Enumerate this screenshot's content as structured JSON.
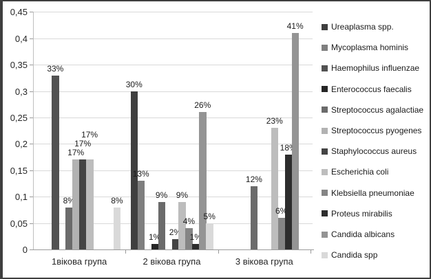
{
  "window": {
    "background": "#ffffff",
    "frame_border_color": "#3f3f3f",
    "gridline_color": "#d9d9d9",
    "axis_color": "#9a9a9a"
  },
  "chart_data": {
    "type": "bar",
    "title": "",
    "categories": [
      "1вікова група",
      "2 вікова група",
      "3 вікова група"
    ],
    "y_axis": {
      "min": 0,
      "max": 0.45,
      "step": 0.05,
      "tick_labels": [
        "0",
        "0,05",
        "0,1",
        "0,15",
        "0,2",
        "0,25",
        "0,3",
        "0,35",
        "0,4",
        "0,45"
      ],
      "decimal_separator": ","
    },
    "grid": true,
    "data_labels": true,
    "legend_position": "right",
    "series": [
      {
        "name": "Ureaplasma spp.",
        "color": "#3f3f3f",
        "values": [
          0,
          0.3,
          0
        ],
        "labels": [
          "",
          "30%",
          ""
        ]
      },
      {
        "name": "Mycoplasma hominis",
        "color": "#7f7f7f",
        "values": [
          0,
          0.13,
          0
        ],
        "labels": [
          "",
          "13%",
          ""
        ]
      },
      {
        "name": "Haemophilus influenzae",
        "color": "#525252",
        "values": [
          0.33,
          0,
          0
        ],
        "labels": [
          "33%",
          "",
          ""
        ]
      },
      {
        "name": "Enterococcus faecalis",
        "color": "#262626",
        "values": [
          0,
          0.01,
          0
        ],
        "labels": [
          "",
          "1%",
          ""
        ]
      },
      {
        "name": "Streptococcus agalactiae",
        "color": "#6b6b6b",
        "values": [
          0.08,
          0.09,
          0.12
        ],
        "labels": [
          "8%",
          "9%",
          "12%"
        ]
      },
      {
        "name": "Streptococcus pyogenes",
        "color": "#b2b2b2",
        "values": [
          0.17,
          0,
          0
        ],
        "labels": [
          "17%",
          "",
          ""
        ]
      },
      {
        "name": "Staphylococcus aureus",
        "color": "#444444",
        "values": [
          0.17,
          0.02,
          0
        ],
        "labels": [
          "17%",
          "2%",
          ""
        ]
      },
      {
        "name": "Escherichia coli",
        "color": "#bdbdbd",
        "values": [
          0.17,
          0.09,
          0.23
        ],
        "labels": [
          "17%",
          "9%",
          "23%"
        ]
      },
      {
        "name": "Klebsiella pneumoniae",
        "color": "#858585",
        "values": [
          0,
          0.04,
          0.06
        ],
        "labels": [
          "",
          "4%",
          "6%"
        ]
      },
      {
        "name": "Proteus mirabilis",
        "color": "#2d2d2d",
        "values": [
          0,
          0.01,
          0.18
        ],
        "labels": [
          "",
          "1%",
          "18%"
        ]
      },
      {
        "name": "Candida albicans",
        "color": "#949494",
        "values": [
          0,
          0.26,
          0.41
        ],
        "labels": [
          "",
          "26%",
          "41%"
        ]
      },
      {
        "name": "Candida spp",
        "color": "#d9d9d9",
        "values": [
          0.08,
          0.05,
          0
        ],
        "labels": [
          "8%",
          "5%",
          ""
        ]
      }
    ]
  }
}
